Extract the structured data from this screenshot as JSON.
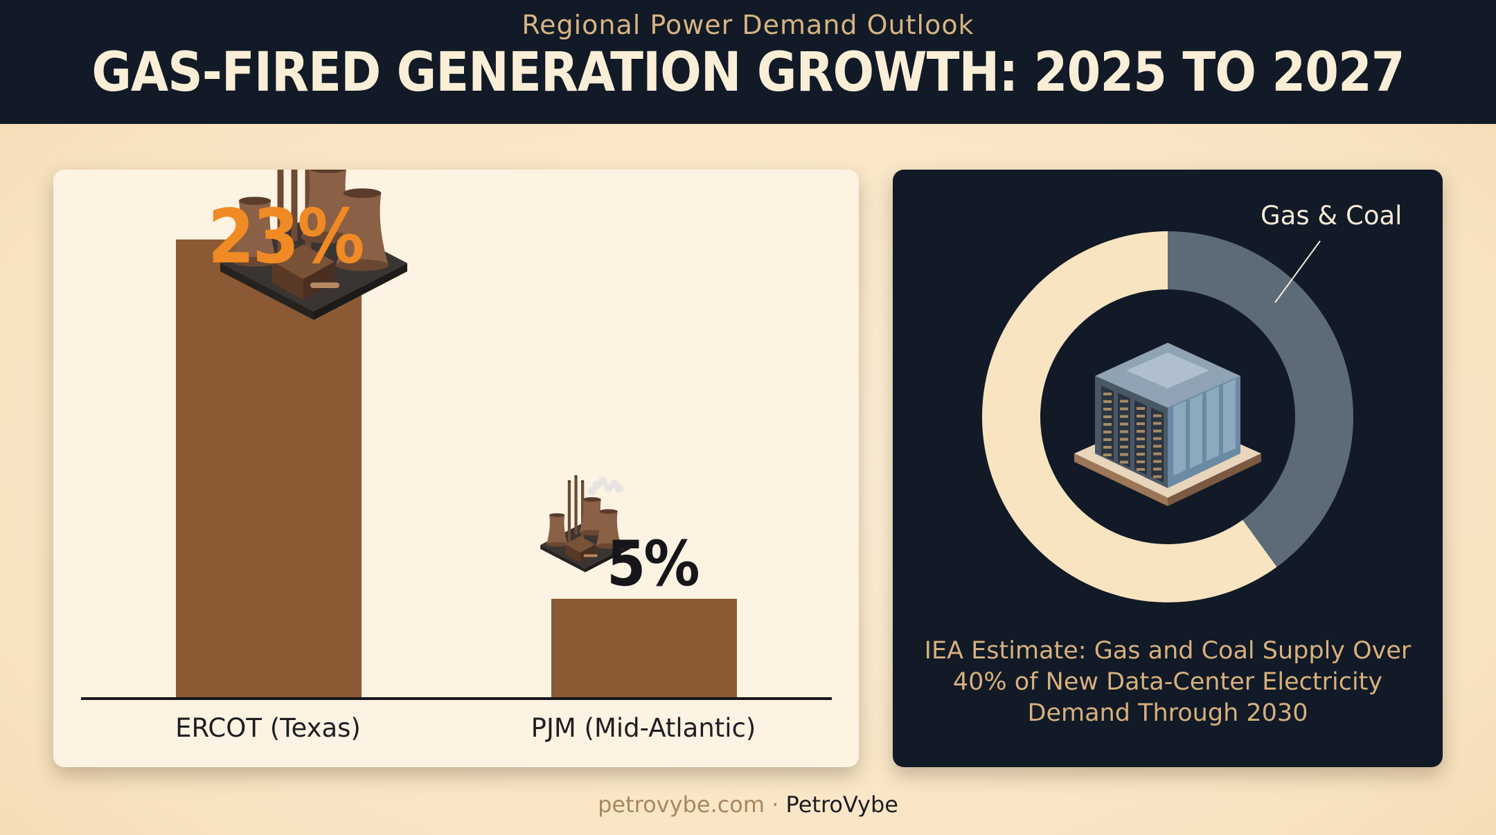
{
  "header": {
    "kicker": "Regional Power Demand Outlook",
    "title": "GAS-FIRED GENERATION GROWTH: 2025 TO 2027"
  },
  "chart_data": [
    {
      "type": "bar",
      "title": "",
      "categories": [
        "ERCOT (Texas)",
        "PJM (Mid-Atlantic)"
      ],
      "values": [
        23,
        5
      ],
      "value_labels": [
        "23%",
        "5%"
      ],
      "value_label_colors": [
        "#f08a24",
        "#16161a"
      ],
      "bar_color": "#8b5a34",
      "icons": [
        "power-plant-icon",
        "power-plant-icon"
      ],
      "ylim": [
        0,
        26.5
      ],
      "xlabel": "",
      "ylabel": "",
      "grid": false
    },
    {
      "type": "pie",
      "style": "donut",
      "slices": [
        {
          "label": "Gas & Coal",
          "value": 40,
          "color": "#5d6b78"
        },
        {
          "label": "",
          "value": 60,
          "color": "#f8e4c0"
        }
      ],
      "center_icon": "data-center-icon",
      "caption": "IEA Estimate: Gas and Coal Supply Over 40% of New Data-Center Electricity Demand Through 2030"
    }
  ],
  "footer": {
    "site": "petrovybe.com",
    "separator": " · ",
    "brand": "PetroVybe"
  }
}
